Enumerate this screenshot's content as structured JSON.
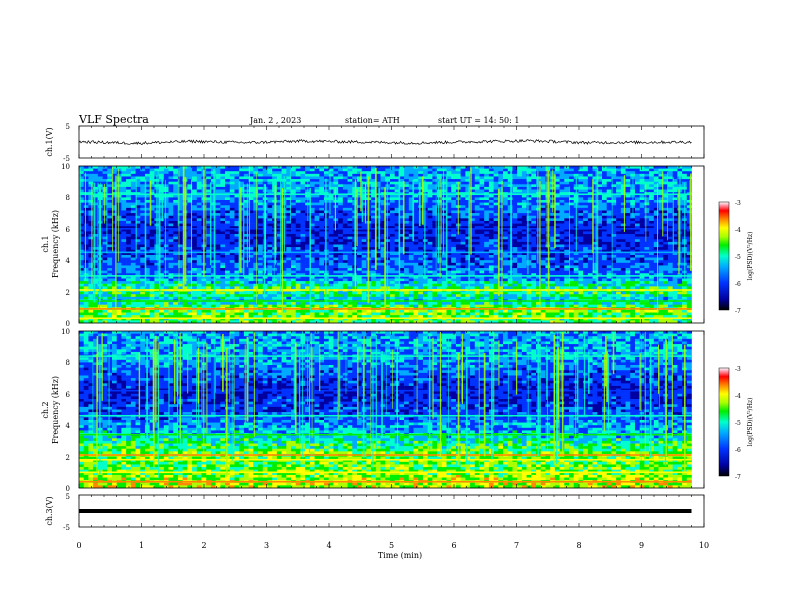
{
  "header": {
    "title": "VLF  Spectra",
    "date": "Jan.  2  ,  2023",
    "station": "station= ATH",
    "start": "start  UT  =   14: 50: 1"
  },
  "panels": {
    "ch1_wave": {
      "ylabel": "ch.1(V)",
      "ticks": [
        "5",
        "-5"
      ]
    },
    "ch1_spec": {
      "ylabel_top": "ch.1",
      "ylabel": "Frequency  (kHz)",
      "ticks": [
        "10",
        "8",
        "6",
        "4",
        "2",
        "0"
      ]
    },
    "ch2_spec": {
      "ylabel_top": "ch.2",
      "ylabel": "Frequency  (kHz)",
      "ticks": [
        "10",
        "8",
        "6",
        "4",
        "2",
        "0"
      ]
    },
    "ch3_wave": {
      "ylabel": "ch.3(V)",
      "ticks": [
        "5",
        "-5"
      ]
    }
  },
  "x_axis": {
    "label": "Time  (min)",
    "ticks": [
      "0",
      "1",
      "2",
      "3",
      "4",
      "5",
      "6",
      "7",
      "8",
      "9",
      "10"
    ]
  },
  "colorbars": [
    {
      "label": "log(PSD)(V²/Hz)",
      "ticks": [
        "-3",
        "-4",
        "-5",
        "-6",
        "-7"
      ]
    },
    {
      "label": "log(PSD)(V²/Hz)",
      "ticks": [
        "-3",
        "-4",
        "-5",
        "-6",
        "-7"
      ]
    }
  ],
  "colors": {
    "colormap": [
      "#000000",
      "#0000a0",
      "#0033ff",
      "#00aaff",
      "#00ffcc",
      "#00ee00",
      "#aaff00",
      "#ffff00",
      "#ff8800",
      "#ff0000",
      "#ff99aa",
      "#ffffff"
    ],
    "trace": "#000000"
  },
  "chart_data": [
    {
      "type": "line",
      "title": "VLF  Spectra",
      "series": [
        {
          "values": [
            0.1,
            -0.4,
            0.2,
            -0.2,
            0.3,
            0.0,
            -0.3,
            0.1,
            0.4,
            -0.2,
            -0.1,
            0.0
          ]
        }
      ],
      "x": [
        0,
        0.9,
        1.8,
        2.7,
        3.6,
        4.5,
        5.4,
        6.3,
        7.2,
        8.1,
        9.0,
        9.8
      ],
      "xlim": [
        0,
        10
      ],
      "ylim": [
        -5,
        5
      ],
      "xlabel": "Time  (min)",
      "ylabel": "ch.1(V)"
    },
    {
      "type": "heatmap",
      "x_range_min": [
        0,
        9.8
      ],
      "xlim": [
        0,
        10
      ],
      "ylim_khz": [
        0,
        10
      ],
      "ylabel": "Frequency  (kHz)",
      "value_range_logpsd": [
        -7,
        -3
      ],
      "bands_khz_logpsd": [
        [
          0.3,
          -4.5
        ],
        [
          0.9,
          -4.2
        ],
        [
          1.4,
          -5.0
        ],
        [
          2.1,
          -4.5
        ],
        [
          3.0,
          -5.4
        ],
        [
          4.5,
          -5.7
        ],
        [
          6.0,
          -6.0
        ],
        [
          8.2,
          -5.2
        ]
      ]
    },
    {
      "type": "heatmap",
      "x_range_min": [
        0,
        9.8
      ],
      "xlim": [
        0,
        10
      ],
      "ylim_khz": [
        0,
        10
      ],
      "ylabel": "Frequency  (kHz)",
      "value_range_logpsd": [
        -7,
        -3
      ],
      "bands_khz_logpsd": [
        [
          0.4,
          -4.0
        ],
        [
          1.0,
          -4.3
        ],
        [
          1.8,
          -4.4
        ],
        [
          2.1,
          -4.2
        ],
        [
          3.4,
          -5.0
        ],
        [
          4.6,
          -5.6
        ],
        [
          6.2,
          -6.0
        ],
        [
          8.4,
          -5.2
        ]
      ]
    },
    {
      "type": "line",
      "series": [
        {
          "values": [
            0,
            0,
            0,
            0,
            0,
            0,
            0,
            0,
            0,
            0,
            0
          ]
        }
      ],
      "x": [
        0,
        1,
        2,
        3,
        4,
        5,
        6,
        7,
        8,
        9,
        9.8
      ],
      "xlim": [
        0,
        10
      ],
      "ylim": [
        -5,
        5
      ],
      "xlabel": "Time  (min)",
      "ylabel": "ch.3(V)"
    }
  ]
}
